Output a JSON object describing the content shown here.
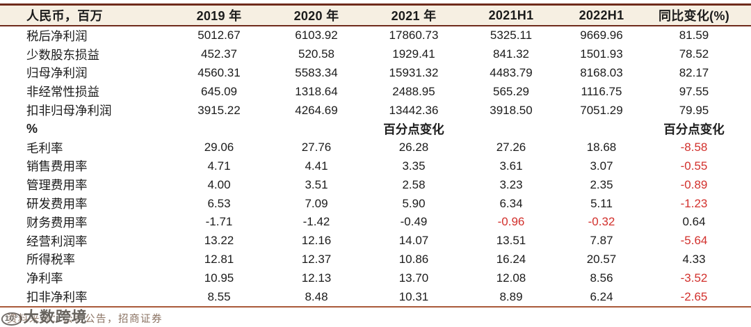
{
  "colors": {
    "header_bg": "#F6EFE2",
    "border_dark": "#6F2B1B",
    "border_bottom": "#A9593A",
    "negative_red": "#D2302C",
    "footer_text": "#8A7262"
  },
  "table": {
    "unit_label": "人民币，百万",
    "columns": [
      "2019 年",
      "2020 年",
      "2021 年",
      "2021H1",
      "2022H1",
      "同比变化(%)"
    ],
    "rows": [
      {
        "label": "税后净利润",
        "values": [
          "5012.67",
          "6103.92",
          "17860.73",
          "5325.11",
          "9669.96",
          "81.59"
        ],
        "red": []
      },
      {
        "label": "少数股东损益",
        "values": [
          "452.37",
          "520.58",
          "1929.41",
          "841.32",
          "1501.93",
          "78.52"
        ],
        "red": []
      },
      {
        "label": "归母净利润",
        "values": [
          "4560.31",
          "5583.34",
          "15931.32",
          "4483.79",
          "8168.03",
          "82.17"
        ],
        "red": []
      },
      {
        "label": "非经常性损益",
        "values": [
          "645.09",
          "1318.64",
          "2488.95",
          "565.29",
          "1116.75",
          "97.55"
        ],
        "red": []
      },
      {
        "label": "扣非归母净利润",
        "values": [
          "3915.22",
          "4264.69",
          "13442.36",
          "3918.50",
          "7051.29",
          "79.95"
        ],
        "red": []
      },
      {
        "label": "%",
        "section": true,
        "values": [
          "",
          "",
          "百分点变化",
          "",
          "",
          "百分点变化"
        ],
        "red": []
      },
      {
        "label": "毛利率",
        "values": [
          "29.06",
          "27.76",
          "26.28",
          "27.26",
          "18.68",
          "-8.58"
        ],
        "red": [
          5
        ]
      },
      {
        "label": "销售费用率",
        "values": [
          "4.71",
          "4.41",
          "3.35",
          "3.61",
          "3.07",
          "-0.55"
        ],
        "red": [
          5
        ]
      },
      {
        "label": "管理费用率",
        "values": [
          "4.00",
          "3.51",
          "2.58",
          "3.23",
          "2.35",
          "-0.89"
        ],
        "red": [
          5
        ]
      },
      {
        "label": "研发费用率",
        "values": [
          "6.53",
          "7.09",
          "5.90",
          "6.34",
          "5.11",
          "-1.23"
        ],
        "red": [
          5
        ]
      },
      {
        "label": "财务费用率",
        "values": [
          "-1.71",
          "-1.42",
          "-0.49",
          "-0.96",
          "-0.32",
          "0.64"
        ],
        "red": [
          3,
          4
        ]
      },
      {
        "label": "经营利润率",
        "values": [
          "13.22",
          "12.16",
          "14.07",
          "13.51",
          "7.87",
          "-5.64"
        ],
        "red": [
          5
        ]
      },
      {
        "label": "所得税率",
        "values": [
          "12.81",
          "12.37",
          "10.86",
          "16.24",
          "20.57",
          "4.33"
        ],
        "red": []
      },
      {
        "label": "净利率",
        "values": [
          "10.95",
          "12.13",
          "13.70",
          "12.08",
          "8.56",
          "-3.52"
        ],
        "red": [
          5
        ]
      },
      {
        "label": "扣非净利率",
        "values": [
          "8.55",
          "8.48",
          "10.31",
          "8.89",
          "6.24",
          "-2.65"
        ],
        "red": [
          5
        ]
      }
    ]
  },
  "footer": {
    "source": "资料来源：公司公告，招商证券",
    "watermark_badge": "10°",
    "watermark": "大数跨境"
  }
}
